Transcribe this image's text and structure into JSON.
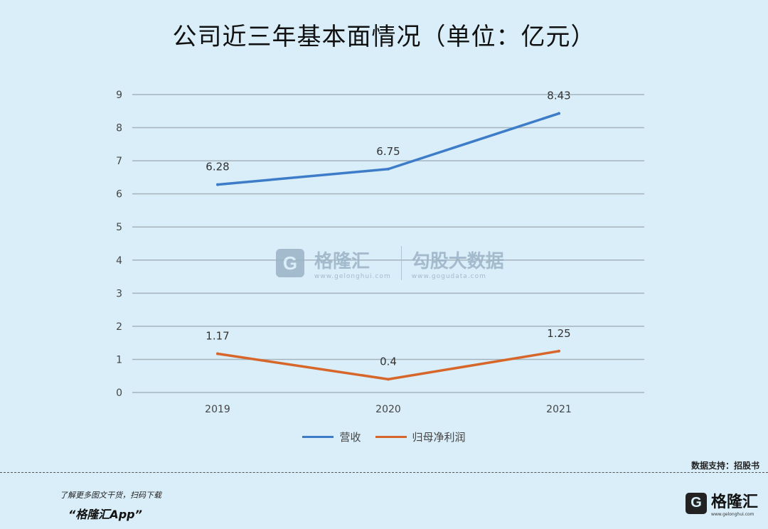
{
  "chart_data": {
    "type": "line",
    "title": "公司近三年基本面情况（单位：亿元）",
    "categories": [
      "2019",
      "2020",
      "2021"
    ],
    "series": [
      {
        "name": "营收",
        "values": [
          6.28,
          6.75,
          8.43
        ],
        "color": "#3d7cc9",
        "labels": [
          "6.28",
          "6.75",
          "8.43"
        ]
      },
      {
        "name": "归母净利润",
        "values": [
          1.17,
          0.4,
          1.25
        ],
        "color": "#d7662a",
        "labels": [
          "1.17",
          "0.4",
          "1.25"
        ]
      }
    ],
    "yticks": [
      "0",
      "1",
      "2",
      "3",
      "4",
      "5",
      "6",
      "7",
      "8",
      "9"
    ],
    "ylim": [
      0,
      9
    ],
    "xlabel": "",
    "ylabel": "",
    "grid": true,
    "legend": "bottom-center"
  },
  "footer": {
    "source": "数据支持：招股书",
    "promo": "了解更多图文干货，扫码下载",
    "app_name": "“格隆汇App”",
    "brand": "格隆汇",
    "brand_logo": "G",
    "brand_sub": "www.gelonghui.com"
  },
  "watermark": {
    "logo": "G",
    "name": "格隆汇",
    "name_url": "www.gelonghui.com",
    "partner": "勾股大数据",
    "partner_url": "www.gogudata.com"
  }
}
